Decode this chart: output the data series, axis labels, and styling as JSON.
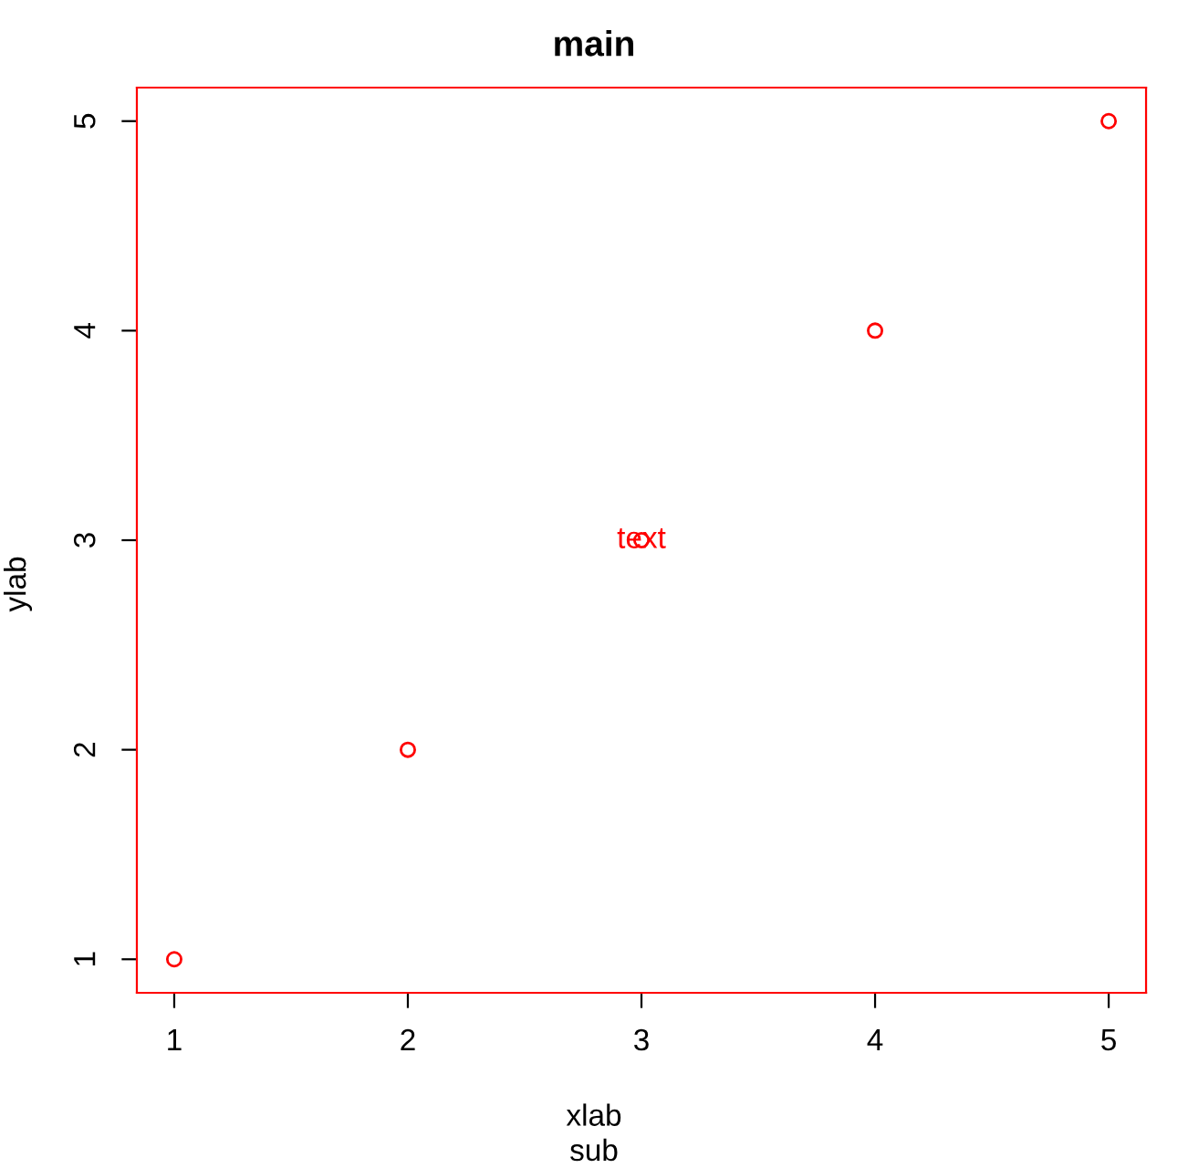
{
  "chart_data": {
    "type": "scatter",
    "title": "main",
    "subtitle": "sub",
    "xlabel": "xlab",
    "ylabel": "ylab",
    "x": [
      1,
      2,
      3,
      4,
      5
    ],
    "series": [
      {
        "color": "#ff0000",
        "values": [
          1,
          2,
          3,
          4,
          5
        ]
      }
    ],
    "annotations": [
      {
        "text": "text",
        "x": 3,
        "y": 3
      }
    ],
    "xlim": [
      0.84,
      5.16
    ],
    "ylim": [
      0.84,
      5.16
    ],
    "xticks": [
      1,
      2,
      3,
      4,
      5
    ],
    "yticks": [
      1,
      2,
      3,
      4,
      5
    ],
    "marker": "circle",
    "grid": false,
    "legend": false
  }
}
